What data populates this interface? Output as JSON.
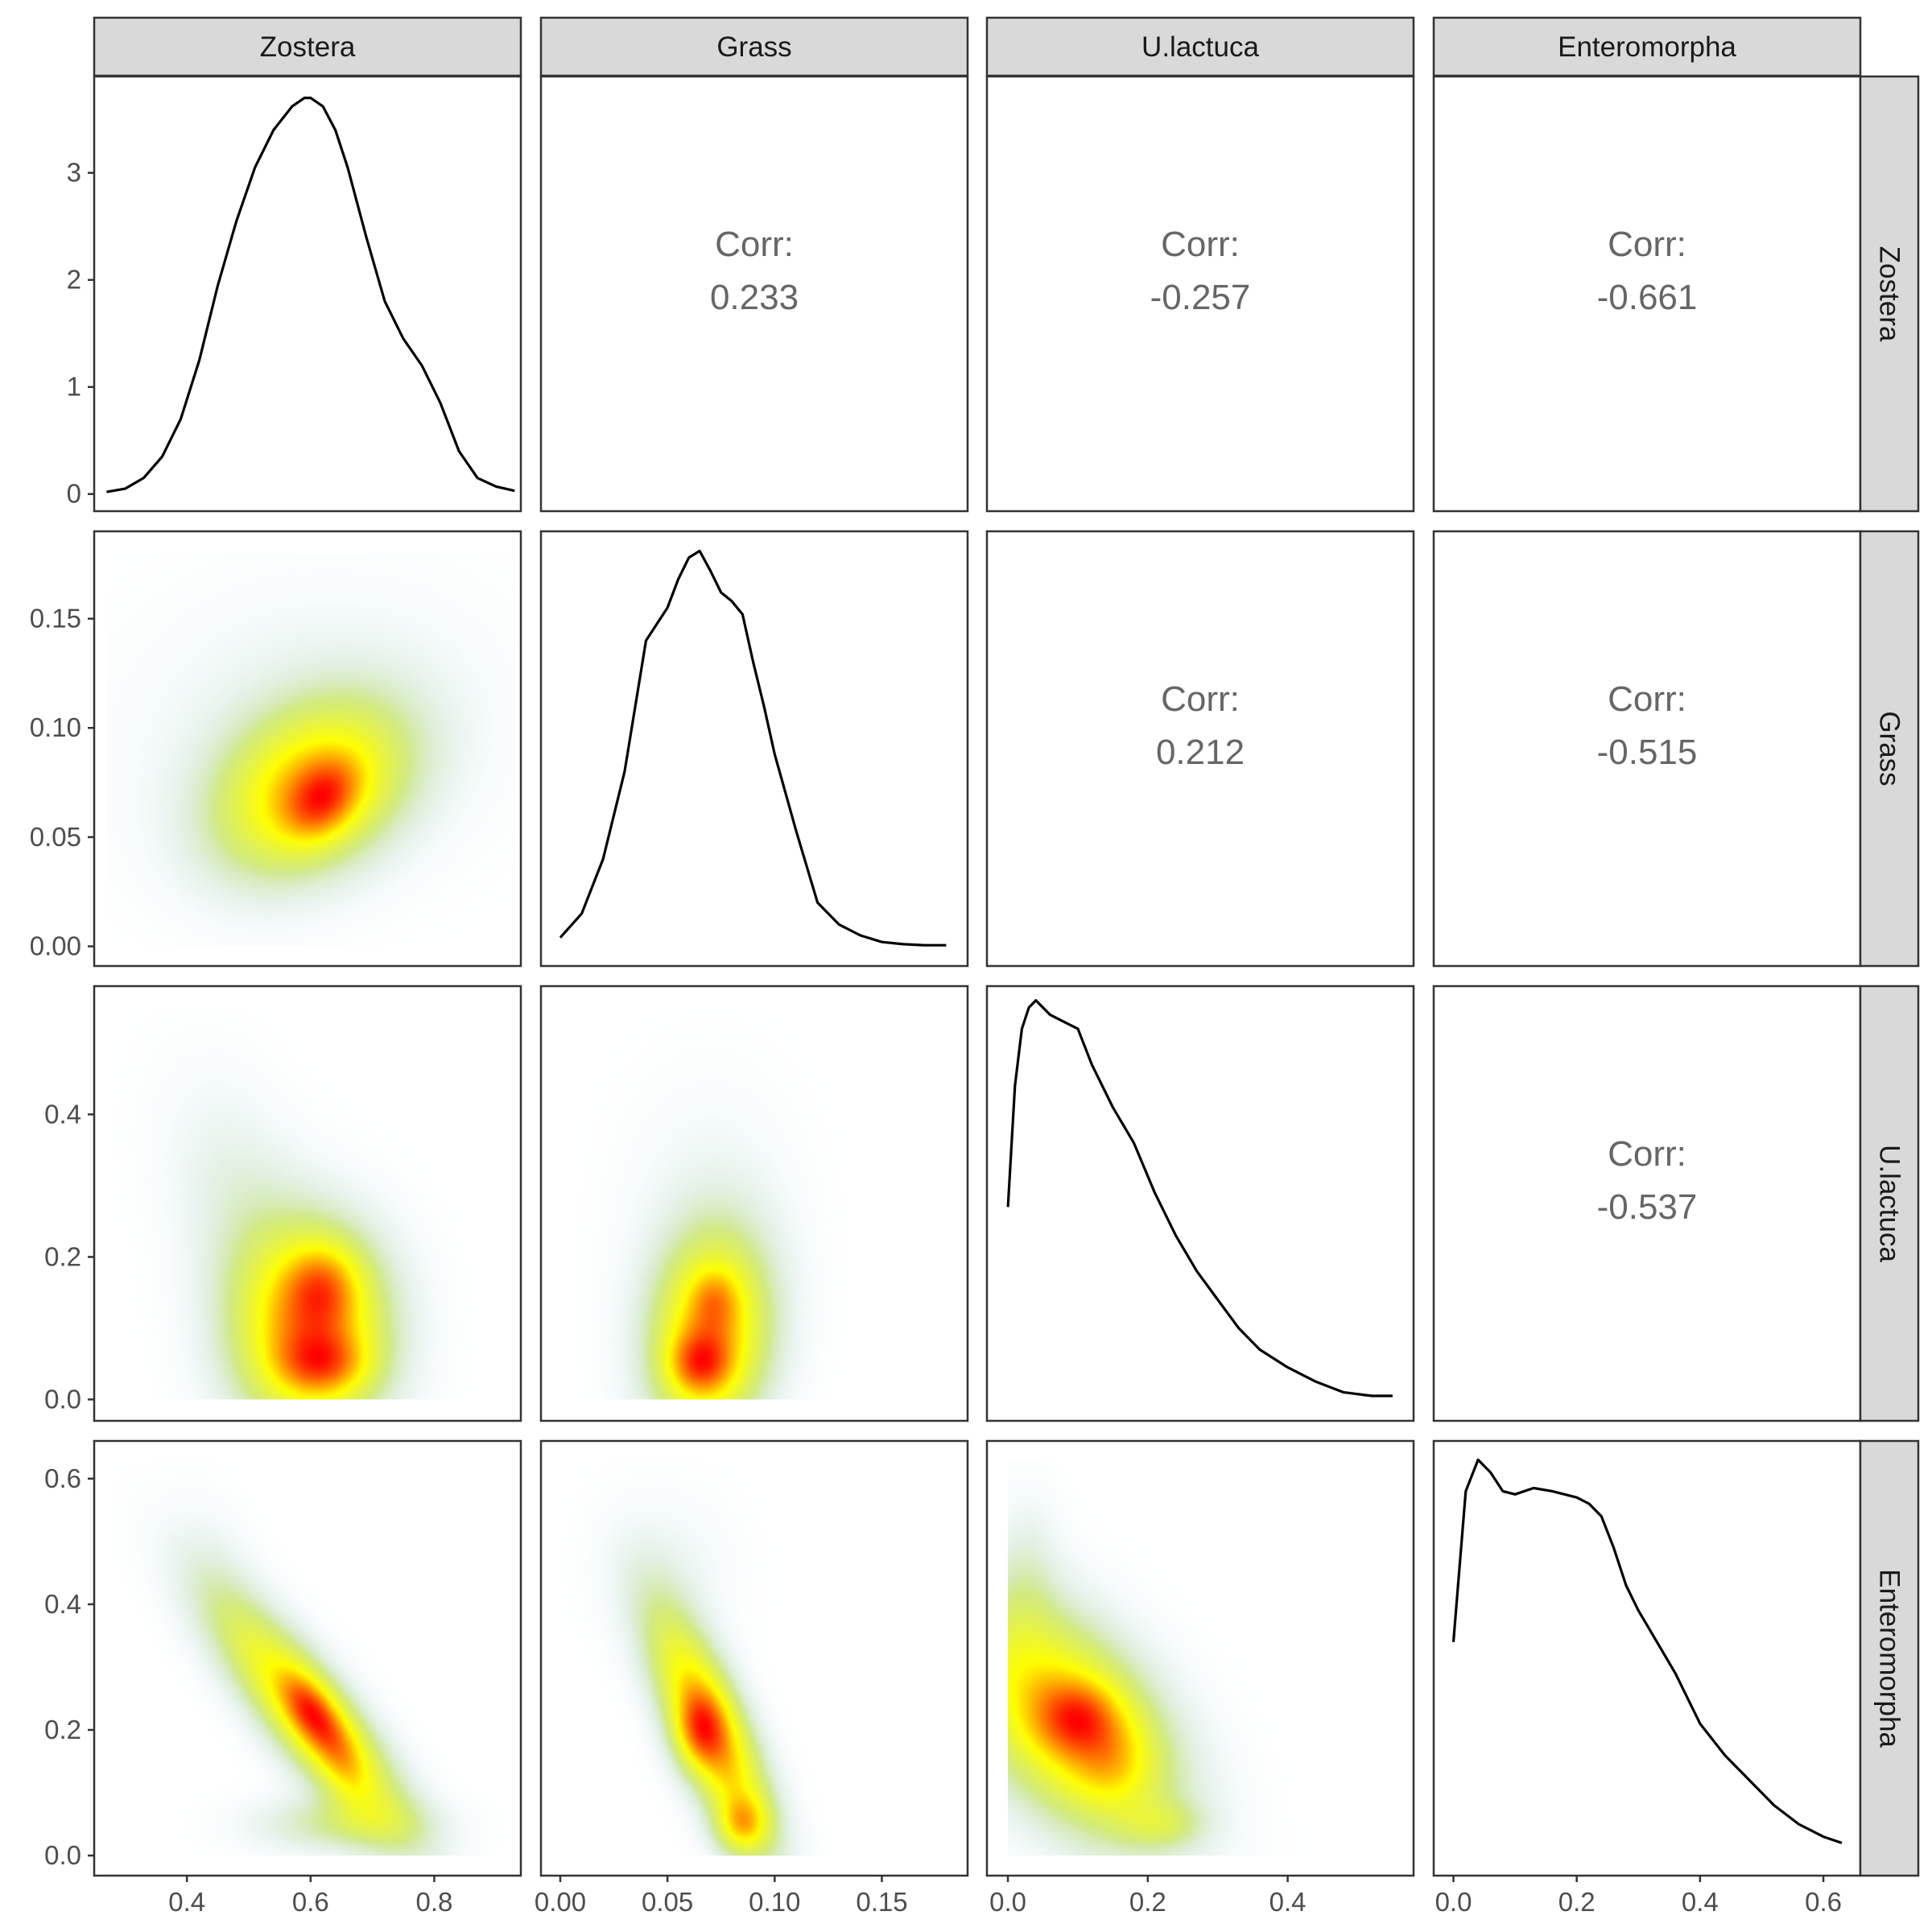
{
  "chart_data": {
    "type": "pairs",
    "variables": [
      "Zostera",
      "Grass",
      "U.lactuca",
      "Enteromorpha"
    ],
    "colors": {
      "low": "#add8e6",
      "mid": "#ffff00",
      "high": "#ff0000",
      "line": "#000000",
      "strip": "#d9d9d9",
      "corr_text": "#666666"
    },
    "x_axes": [
      {
        "range": [
          0.25,
          0.94
        ],
        "ticks": [
          0.4,
          0.6,
          0.8
        ],
        "tick_labels": [
          "0.4",
          "0.6",
          "0.8"
        ]
      },
      {
        "range": [
          -0.009,
          0.19
        ],
        "ticks": [
          0.0,
          0.05,
          0.1,
          0.15
        ],
        "tick_labels": [
          "0.00",
          "0.05",
          "0.10",
          "0.15"
        ]
      },
      {
        "range": [
          -0.03,
          0.58
        ],
        "ticks": [
          0.0,
          0.2,
          0.4
        ],
        "tick_labels": [
          "0.0",
          "0.2",
          "0.4"
        ]
      },
      {
        "range": [
          -0.032,
          0.66
        ],
        "ticks": [
          0.0,
          0.2,
          0.4,
          0.6
        ],
        "tick_labels": [
          "0.0",
          "0.2",
          "0.4",
          "0.6"
        ]
      }
    ],
    "y_axes": [
      {
        "range": [
          -0.16,
          3.9
        ],
        "ticks": [
          0,
          1,
          2,
          3
        ],
        "tick_labels": [
          "0",
          "1",
          "2",
          "3"
        ]
      },
      {
        "range": [
          -0.009,
          0.19
        ],
        "ticks": [
          0.0,
          0.05,
          0.1,
          0.15
        ],
        "tick_labels": [
          "0.00",
          "0.05",
          "0.10",
          "0.15"
        ]
      },
      {
        "range": [
          -0.03,
          0.58
        ],
        "ticks": [
          0.0,
          0.2,
          0.4
        ],
        "tick_labels": [
          "0.0",
          "0.2",
          "0.4"
        ]
      },
      {
        "range": [
          -0.032,
          0.66
        ],
        "ticks": [
          0.0,
          0.2,
          0.4,
          0.6
        ],
        "tick_labels": [
          "0.0",
          "0.2",
          "0.4",
          "0.6"
        ]
      }
    ],
    "correlations": [
      {
        "row": 0,
        "col": 1,
        "label": "Corr:",
        "value": "0.233"
      },
      {
        "row": 0,
        "col": 2,
        "label": "Corr:",
        "value": "-0.257"
      },
      {
        "row": 0,
        "col": 3,
        "label": "Corr:",
        "value": "-0.661"
      },
      {
        "row": 1,
        "col": 2,
        "label": "Corr:",
        "value": "0.212"
      },
      {
        "row": 1,
        "col": 3,
        "label": "Corr:",
        "value": "-0.515"
      },
      {
        "row": 2,
        "col": 3,
        "label": "Corr:",
        "value": "-0.537"
      }
    ],
    "densities": [
      {
        "variable": "Zostera",
        "x": [
          0.27,
          0.3,
          0.33,
          0.36,
          0.39,
          0.42,
          0.45,
          0.48,
          0.51,
          0.54,
          0.57,
          0.59,
          0.6,
          0.62,
          0.64,
          0.66,
          0.69,
          0.72,
          0.75,
          0.78,
          0.81,
          0.84,
          0.87,
          0.9,
          0.93
        ],
        "y": [
          0.02,
          0.05,
          0.15,
          0.35,
          0.7,
          1.25,
          1.95,
          2.55,
          3.05,
          3.4,
          3.62,
          3.7,
          3.7,
          3.62,
          3.4,
          3.05,
          2.4,
          1.8,
          1.45,
          1.2,
          0.85,
          0.4,
          0.15,
          0.07,
          0.03
        ]
      },
      {
        "variable": "Grass",
        "x": [
          0.0,
          0.01,
          0.02,
          0.03,
          0.04,
          0.05,
          0.055,
          0.06,
          0.065,
          0.07,
          0.075,
          0.08,
          0.085,
          0.09,
          0.095,
          0.1,
          0.11,
          0.12,
          0.13,
          0.14,
          0.15,
          0.16,
          0.17,
          0.18
        ],
        "y": [
          0.004,
          0.015,
          0.04,
          0.08,
          0.14,
          0.155,
          0.168,
          0.178,
          0.181,
          0.172,
          0.162,
          0.158,
          0.152,
          0.13,
          0.11,
          0.088,
          0.053,
          0.02,
          0.01,
          0.005,
          0.002,
          0.001,
          0.0005,
          0.0005
        ]
      },
      {
        "variable": "U.lactuca",
        "x": [
          0.0,
          0.01,
          0.02,
          0.03,
          0.04,
          0.06,
          0.08,
          0.1,
          0.12,
          0.15,
          0.18,
          0.21,
          0.24,
          0.27,
          0.3,
          0.33,
          0.36,
          0.4,
          0.44,
          0.48,
          0.52,
          0.55
        ],
        "y": [
          0.27,
          0.44,
          0.52,
          0.55,
          0.56,
          0.54,
          0.53,
          0.52,
          0.47,
          0.41,
          0.36,
          0.29,
          0.23,
          0.18,
          0.14,
          0.1,
          0.07,
          0.045,
          0.025,
          0.01,
          0.005,
          0.005
        ]
      },
      {
        "variable": "Enteromorpha",
        "x": [
          0.0,
          0.02,
          0.04,
          0.06,
          0.08,
          0.1,
          0.13,
          0.16,
          0.2,
          0.22,
          0.24,
          0.26,
          0.28,
          0.3,
          0.33,
          0.36,
          0.4,
          0.44,
          0.48,
          0.52,
          0.56,
          0.6,
          0.63
        ],
        "y": [
          0.34,
          0.58,
          0.63,
          0.61,
          0.58,
          0.575,
          0.585,
          0.58,
          0.57,
          0.56,
          0.54,
          0.49,
          0.43,
          0.39,
          0.34,
          0.29,
          0.21,
          0.16,
          0.12,
          0.08,
          0.05,
          0.03,
          0.02
        ]
      }
    ],
    "density2d": [
      {
        "row": 1,
        "col": 0,
        "extent": [
          [
            0.27,
            0.93
          ],
          [
            0.0,
            0.18
          ]
        ],
        "blobs": [
          {
            "x": 0.6,
            "y": 0.072,
            "sx": 0.1,
            "sy": 0.025,
            "rho": 0.3,
            "w": 0.8
          },
          {
            "x": 0.62,
            "y": 0.067,
            "sx": 0.04,
            "sy": 0.012,
            "rho": 0.3,
            "w": 0.5
          },
          {
            "x": 0.6,
            "y": 0.1,
            "sx": 0.18,
            "sy": 0.04,
            "rho": 0.1,
            "w": 0.1
          }
        ]
      },
      {
        "row": 2,
        "col": 0,
        "extent": [
          [
            0.27,
            0.93
          ],
          [
            0.0,
            0.55
          ]
        ],
        "blobs": [
          {
            "x": 0.6,
            "y": 0.1,
            "sx": 0.08,
            "sy": 0.09,
            "rho": 0.0,
            "w": 0.8
          },
          {
            "x": 0.62,
            "y": 0.16,
            "sx": 0.04,
            "sy": 0.04,
            "rho": 0.0,
            "w": 0.35
          },
          {
            "x": 0.62,
            "y": 0.05,
            "sx": 0.05,
            "sy": 0.03,
            "rho": 0.0,
            "w": 0.4
          },
          {
            "x": 0.5,
            "y": 0.25,
            "sx": 0.08,
            "sy": 0.12,
            "rho": -0.4,
            "w": 0.12
          }
        ]
      },
      {
        "row": 3,
        "col": 0,
        "extent": [
          [
            0.27,
            0.93
          ],
          [
            0.0,
            0.63
          ]
        ],
        "blobs": [
          {
            "x": 0.6,
            "y": 0.22,
            "sx": 0.1,
            "sy": 0.12,
            "rho": -0.85,
            "w": 0.8
          },
          {
            "x": 0.6,
            "y": 0.23,
            "sx": 0.03,
            "sy": 0.04,
            "rho": -0.5,
            "w": 0.5
          },
          {
            "x": 0.65,
            "y": 0.16,
            "sx": 0.03,
            "sy": 0.05,
            "rho": -0.5,
            "w": 0.25
          },
          {
            "x": 0.65,
            "y": 0.05,
            "sx": 0.09,
            "sy": 0.03,
            "rho": 0.0,
            "w": 0.25
          },
          {
            "x": 0.45,
            "y": 0.45,
            "sx": 0.05,
            "sy": 0.08,
            "rho": -0.4,
            "w": 0.06
          }
        ]
      },
      {
        "row": 2,
        "col": 1,
        "extent": [
          [
            0.0,
            0.18
          ],
          [
            0.0,
            0.55
          ]
        ],
        "blobs": [
          {
            "x": 0.07,
            "y": 0.09,
            "sx": 0.018,
            "sy": 0.09,
            "rho": 0.1,
            "w": 0.8
          },
          {
            "x": 0.065,
            "y": 0.05,
            "sx": 0.01,
            "sy": 0.03,
            "rho": 0.0,
            "w": 0.5
          },
          {
            "x": 0.072,
            "y": 0.14,
            "sx": 0.008,
            "sy": 0.03,
            "rho": 0.0,
            "w": 0.25
          },
          {
            "x": 0.07,
            "y": 0.25,
            "sx": 0.025,
            "sy": 0.12,
            "rho": 0.0,
            "w": 0.07
          }
        ]
      },
      {
        "row": 3,
        "col": 1,
        "extent": [
          [
            0.0,
            0.18
          ],
          [
            0.0,
            0.63
          ]
        ],
        "blobs": [
          {
            "x": 0.07,
            "y": 0.2,
            "sx": 0.018,
            "sy": 0.12,
            "rho": -0.75,
            "w": 0.8
          },
          {
            "x": 0.085,
            "y": 0.05,
            "sx": 0.008,
            "sy": 0.03,
            "rho": 0.0,
            "w": 0.45
          },
          {
            "x": 0.065,
            "y": 0.2,
            "sx": 0.008,
            "sy": 0.04,
            "rho": 0.0,
            "w": 0.4
          },
          {
            "x": 0.05,
            "y": 0.45,
            "sx": 0.02,
            "sy": 0.08,
            "rho": 0.0,
            "w": 0.06
          }
        ]
      },
      {
        "row": 3,
        "col": 2,
        "extent": [
          [
            0.0,
            0.55
          ],
          [
            0.0,
            0.63
          ]
        ],
        "blobs": [
          {
            "x": 0.08,
            "y": 0.22,
            "sx": 0.1,
            "sy": 0.12,
            "rho": -0.5,
            "w": 0.8
          },
          {
            "x": 0.1,
            "y": 0.22,
            "sx": 0.04,
            "sy": 0.04,
            "rho": 0.0,
            "w": 0.45
          },
          {
            "x": 0.15,
            "y": 0.15,
            "sx": 0.04,
            "sy": 0.05,
            "rho": 0.0,
            "w": 0.25
          },
          {
            "x": 0.22,
            "y": 0.05,
            "sx": 0.04,
            "sy": 0.025,
            "rho": 0.0,
            "w": 0.22
          },
          {
            "x": 0.03,
            "y": 0.45,
            "sx": 0.03,
            "sy": 0.08,
            "rho": 0.0,
            "w": 0.1
          }
        ]
      }
    ]
  }
}
